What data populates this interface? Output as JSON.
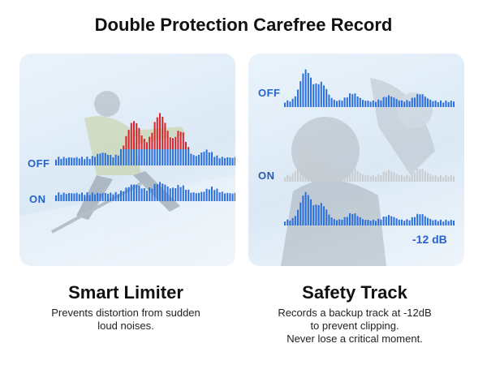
{
  "header": {
    "title": "Double Protection Carefree Record"
  },
  "limiter": {
    "off_label": "OFF",
    "on_label": "ON",
    "title": "Smart Limiter",
    "description_lines": [
      "Prevents distortion from sudden",
      "loud noises."
    ]
  },
  "safety": {
    "off_label": "OFF",
    "on_label": "ON",
    "db_label": "-12 dB",
    "title": "Safety Track",
    "description_lines": [
      "Records a backup track at -12dB",
      "to prevent clipping.",
      "Never lose a critical moment."
    ]
  },
  "colors": {
    "accent_blue": "#2a6fdb",
    "clip_red": "#d8232a",
    "muted_gray": "#c9ccd0",
    "panel_bg": "#e3eef8"
  }
}
